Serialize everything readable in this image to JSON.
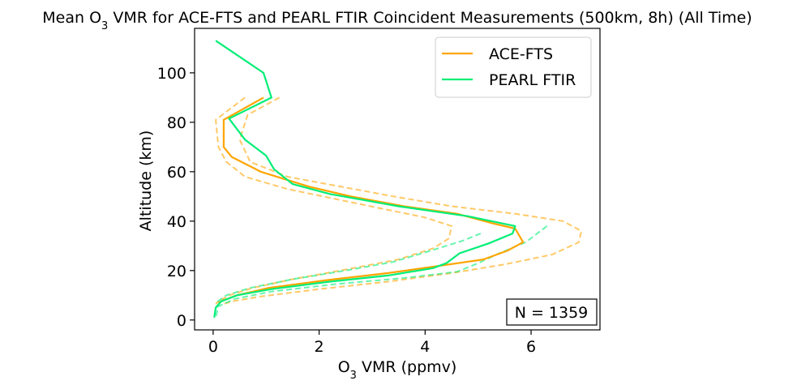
{
  "chart_data": {
    "type": "line",
    "title_parts": [
      "Mean O",
      "3",
      " VMR for ACE-FTS and PEARL FTIR Coincident Measurements (500km, 8h) (All Time)"
    ],
    "xlabel_parts": [
      "O",
      "3",
      " VMR (ppmv)"
    ],
    "ylabel": "Altitude (km)",
    "xlim": [
      -0.35,
      7.3
    ],
    "ylim": [
      -4,
      118
    ],
    "xticks": [
      "0",
      "2",
      "4",
      "6"
    ],
    "yticks": [
      "0",
      "20",
      "40",
      "60",
      "80",
      "100"
    ],
    "legend_placement": "top-right",
    "annotation": "N = 1359",
    "colors": {
      "ace": "#ffa500",
      "pearl": "#00ee76"
    },
    "series": [
      {
        "name": "ACE-FTS",
        "style": "solid",
        "points": [
          [
            0.95,
            90
          ],
          [
            0.2,
            81
          ],
          [
            0.2,
            70
          ],
          [
            0.35,
            66
          ],
          [
            0.9,
            60
          ],
          [
            1.8,
            54
          ],
          [
            2.6,
            50
          ],
          [
            3.6,
            46
          ],
          [
            4.6,
            43
          ],
          [
            5.3,
            39
          ],
          [
            5.7,
            37
          ],
          [
            5.85,
            31.5
          ],
          [
            5.55,
            28
          ],
          [
            5.1,
            24.5
          ],
          [
            4.3,
            22
          ],
          [
            3.3,
            19
          ],
          [
            2.1,
            16
          ],
          [
            1.05,
            13
          ],
          [
            0.45,
            10
          ],
          [
            0.2,
            8
          ],
          [
            0.1,
            7
          ]
        ]
      },
      {
        "name": "PEARL FTIR",
        "style": "solid",
        "points": [
          [
            0.05,
            113
          ],
          [
            0.95,
            100
          ],
          [
            1.1,
            90
          ],
          [
            0.3,
            81.5
          ],
          [
            0.6,
            73
          ],
          [
            1.0,
            66.5
          ],
          [
            1.15,
            61
          ],
          [
            1.5,
            55
          ],
          [
            2.2,
            51
          ],
          [
            3.5,
            46
          ],
          [
            4.8,
            42
          ],
          [
            5.7,
            38
          ],
          [
            5.65,
            35
          ],
          [
            5.2,
            31
          ],
          [
            4.65,
            27
          ],
          [
            4.4,
            23
          ],
          [
            4.15,
            21
          ],
          [
            3.3,
            18
          ],
          [
            2.2,
            15.5
          ],
          [
            1.1,
            12.5
          ],
          [
            0.45,
            10
          ],
          [
            0.15,
            7.5
          ],
          [
            0.05,
            5
          ],
          [
            0.02,
            1
          ]
        ]
      },
      {
        "style": "dashed",
        "series_ref": "ACE-FTS",
        "points": [
          [
            1.25,
            90
          ],
          [
            0.65,
            83
          ],
          [
            0.5,
            73
          ],
          [
            0.7,
            64
          ],
          [
            1.4,
            58
          ],
          [
            2.4,
            54
          ],
          [
            3.4,
            50
          ],
          [
            4.5,
            46
          ],
          [
            5.7,
            43
          ],
          [
            6.6,
            40
          ],
          [
            6.95,
            36
          ],
          [
            6.9,
            31.5
          ],
          [
            6.4,
            26.5
          ],
          [
            5.5,
            22.5
          ],
          [
            4.5,
            19
          ],
          [
            3.3,
            15.5
          ],
          [
            2.0,
            12.5
          ],
          [
            0.9,
            9.5
          ],
          [
            0.35,
            7.5
          ],
          [
            0.2,
            6.5
          ]
        ]
      },
      {
        "style": "dashed",
        "series_ref": "ACE-FTS",
        "points": [
          [
            0.6,
            90
          ],
          [
            0.05,
            81
          ],
          [
            0.1,
            70
          ],
          [
            0.25,
            64
          ],
          [
            0.6,
            58
          ],
          [
            1.4,
            53
          ],
          [
            2.3,
            49
          ],
          [
            3.2,
            45
          ],
          [
            4.0,
            41.5
          ],
          [
            4.5,
            38
          ],
          [
            4.45,
            33
          ],
          [
            4.15,
            29
          ],
          [
            3.5,
            24.5
          ],
          [
            2.4,
            20
          ],
          [
            1.5,
            16.5
          ],
          [
            0.75,
            13
          ],
          [
            0.3,
            10
          ],
          [
            0.1,
            7.5
          ],
          [
            0.05,
            6.5
          ]
        ]
      },
      {
        "style": "dashed",
        "series_ref": "PEARL FTIR",
        "points": [
          [
            6.3,
            38
          ],
          [
            5.9,
            31.5
          ],
          [
            5.4,
            27
          ],
          [
            5.0,
            23
          ],
          [
            4.6,
            19.5
          ],
          [
            3.6,
            17
          ],
          [
            2.3,
            14.5
          ],
          [
            1.1,
            11.5
          ],
          [
            0.4,
            8.5
          ],
          [
            0.1,
            5.5
          ],
          [
            0.05,
            1
          ]
        ]
      },
      {
        "style": "dashed",
        "series_ref": "PEARL FTIR",
        "points": [
          [
            5.05,
            35
          ],
          [
            4.7,
            32
          ],
          [
            4.1,
            28
          ],
          [
            3.4,
            23.5
          ],
          [
            2.5,
            20
          ],
          [
            1.5,
            16.5
          ],
          [
            0.7,
            13
          ],
          [
            0.25,
            10
          ],
          [
            0.05,
            7
          ]
        ]
      }
    ]
  }
}
